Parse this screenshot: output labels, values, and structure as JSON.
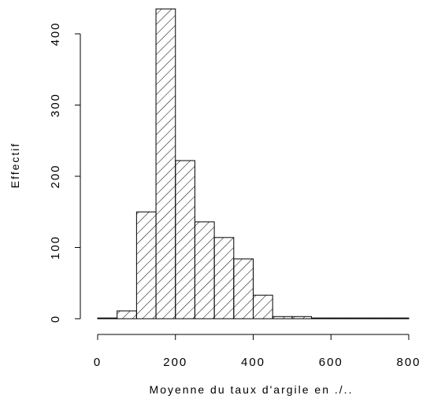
{
  "chart_data": {
    "type": "bar",
    "subtype": "histogram",
    "xlabel": "Moyenne du taux d'argile en ./..",
    "ylabel": "Effectif",
    "xlim": [
      0,
      800
    ],
    "ylim": [
      0,
      440
    ],
    "x_ticks": [
      "0",
      "200",
      "400",
      "600",
      "800"
    ],
    "y_ticks": [
      "0",
      "100",
      "200",
      "300",
      "400"
    ],
    "bin_width": 50,
    "bins": [
      {
        "start": 0,
        "end": 50,
        "count": 1
      },
      {
        "start": 50,
        "end": 100,
        "count": 11
      },
      {
        "start": 100,
        "end": 150,
        "count": 150
      },
      {
        "start": 150,
        "end": 200,
        "count": 435
      },
      {
        "start": 200,
        "end": 250,
        "count": 222
      },
      {
        "start": 250,
        "end": 300,
        "count": 136
      },
      {
        "start": 300,
        "end": 350,
        "count": 114
      },
      {
        "start": 350,
        "end": 400,
        "count": 84
      },
      {
        "start": 400,
        "end": 450,
        "count": 33
      },
      {
        "start": 450,
        "end": 500,
        "count": 3
      },
      {
        "start": 500,
        "end": 550,
        "count": 3
      },
      {
        "start": 550,
        "end": 600,
        "count": 1
      },
      {
        "start": 600,
        "end": 650,
        "count": 1
      },
      {
        "start": 650,
        "end": 700,
        "count": 1
      },
      {
        "start": 700,
        "end": 750,
        "count": 1
      },
      {
        "start": 750,
        "end": 800,
        "count": 1
      }
    ],
    "fill": "hatched",
    "grid": false,
    "legend": "none"
  },
  "colors": {
    "bar_stroke": "#000000",
    "hatch": "#000000",
    "background": "#ffffff"
  }
}
